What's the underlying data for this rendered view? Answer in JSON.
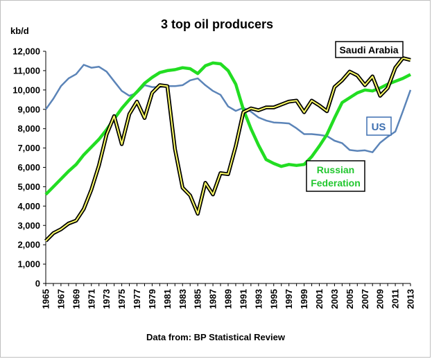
{
  "chart_data": {
    "type": "line",
    "title": "3 top oil producers",
    "ylabel": "kb/d",
    "source": "Data from: BP Statistical Review",
    "ylim": [
      0,
      12000
    ],
    "yticks": [
      0,
      1000,
      2000,
      3000,
      4000,
      5000,
      6000,
      7000,
      8000,
      9000,
      10000,
      11000,
      12000
    ],
    "ytick_labels": [
      "0",
      "1,000",
      "2,000",
      "3,000",
      "4,000",
      "5,000",
      "6,000",
      "7,000",
      "8,000",
      "9,000",
      "10,000",
      "11,000",
      "12,000"
    ],
    "x": [
      1965,
      1966,
      1967,
      1968,
      1969,
      1970,
      1971,
      1972,
      1973,
      1974,
      1975,
      1976,
      1977,
      1978,
      1979,
      1980,
      1981,
      1982,
      1983,
      1984,
      1985,
      1986,
      1987,
      1988,
      1989,
      1990,
      1991,
      1992,
      1993,
      1994,
      1995,
      1996,
      1997,
      1998,
      1999,
      2000,
      2001,
      2002,
      2003,
      2004,
      2005,
      2006,
      2007,
      2008,
      2009,
      2010,
      2011,
      2012,
      2013
    ],
    "xtick_labels": [
      "1965",
      "1967",
      "1969",
      "1971",
      "1973",
      "1975",
      "1977",
      "1979",
      "1981",
      "1983",
      "1985",
      "1987",
      "1989",
      "1991",
      "1993",
      "1995",
      "1997",
      "1999",
      "2001",
      "2003",
      "2005",
      "2007",
      "2009",
      "2011",
      "2013"
    ],
    "grid": false,
    "series": [
      {
        "name": "US",
        "color": "#5b84b8",
        "values": [
          9000,
          9550,
          10200,
          10600,
          10820,
          11300,
          11150,
          11200,
          10950,
          10450,
          9950,
          9700,
          9850,
          10250,
          10150,
          10150,
          10200,
          10200,
          10250,
          10500,
          10600,
          10250,
          9950,
          9750,
          9150,
          8920,
          9080,
          8880,
          8580,
          8420,
          8320,
          8300,
          8270,
          8020,
          7720,
          7720,
          7680,
          7620,
          7380,
          7250,
          6900,
          6850,
          6880,
          6780,
          7270,
          7580,
          7850,
          8900,
          10000
        ]
      },
      {
        "name": "Saudi Arabia",
        "color": "#000000",
        "highlight": "#ffff66",
        "values": [
          2200,
          2600,
          2800,
          3100,
          3250,
          3850,
          4850,
          6100,
          7700,
          8650,
          7200,
          8750,
          9400,
          8550,
          9850,
          10250,
          10200,
          6950,
          4950,
          4550,
          3600,
          5200,
          4600,
          5700,
          5650,
          7100,
          8850,
          9050,
          8950,
          9100,
          9100,
          9250,
          9400,
          9450,
          8850,
          9450,
          9200,
          8900,
          10150,
          10500,
          10950,
          10750,
          10250,
          10700,
          9700,
          10100,
          11150,
          11650,
          11550
        ]
      },
      {
        "name": "Russian Federation",
        "color": "#22dd22",
        "values": [
          4600,
          5000,
          5400,
          5800,
          6150,
          6650,
          7050,
          7450,
          7950,
          8500,
          9050,
          9500,
          9900,
          10350,
          10650,
          10900,
          11000,
          11050,
          11150,
          11100,
          10850,
          11250,
          11400,
          11350,
          11000,
          10300,
          9000,
          8000,
          7150,
          6400,
          6200,
          6050,
          6150,
          6100,
          6150,
          6550,
          7100,
          7700,
          8550,
          9350,
          9600,
          9850,
          10000,
          9950,
          10100,
          10300,
          10450,
          10600,
          10800
        ]
      }
    ],
    "annotations": {
      "saudi_arabia": "Saudi Arabia",
      "us": "US",
      "russia_line1": "Russian",
      "russia_line2": "Federation"
    }
  }
}
